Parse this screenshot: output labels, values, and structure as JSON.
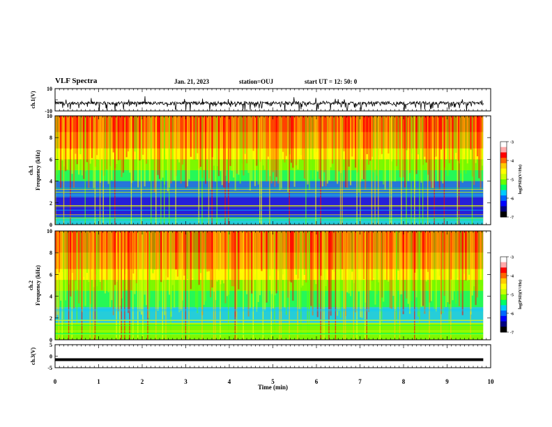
{
  "header": {
    "title": "VLF Spectra",
    "date": "Jan. 21, 2023",
    "station": "station=OUJ",
    "start_ut": "start UT = 12: 50: 0"
  },
  "colors": {
    "palette": [
      "#000080",
      "#0000ff",
      "#0066ff",
      "#00ccff",
      "#00ff66",
      "#66ff00",
      "#ccff00",
      "#ffff00",
      "#ffcc00",
      "#ff6600",
      "#ff0000",
      "#ffaaaa",
      "#ffffff"
    ],
    "trace": "#000000",
    "axes": "#000000"
  },
  "chart_data": [
    {
      "type": "line",
      "ylabel": "ch.1(V)",
      "ylim": [
        -10,
        10
      ],
      "yticks": [
        "10",
        "-10"
      ],
      "xlim": [
        0,
        10
      ],
      "description_trace": "noisy waveform around -3 V with frequent negative spikes",
      "baseline": -3
    },
    {
      "type": "heatmap",
      "ylabel_line1": "ch.1",
      "ylabel_line2": "Frequency (kHz)",
      "ylim": [
        0,
        10
      ],
      "yticks": [
        "0",
        "2",
        "4",
        "6",
        "8",
        "10"
      ],
      "xlim": [
        0,
        10
      ],
      "colorbar": {
        "label": "log(PSD)(V²/Hz)",
        "range": [
          -7,
          -3
        ],
        "ticks": [
          "-3",
          "-4",
          "-5",
          "-6",
          "-7"
        ]
      }
    },
    {
      "type": "heatmap",
      "ylabel_line1": "ch.2",
      "ylabel_line2": "Frequency (kHz)",
      "ylim": [
        0,
        10
      ],
      "yticks": [
        "0",
        "2",
        "4",
        "6",
        "8",
        "10"
      ],
      "xlim": [
        0,
        10
      ],
      "colorbar": {
        "label": "log(PSD)(V²/Hz)",
        "range": [
          -7,
          -3
        ],
        "ticks": [
          "-3",
          "-4",
          "-5",
          "-6",
          "-7"
        ]
      }
    },
    {
      "type": "line",
      "ylabel": "ch.3(V)",
      "ylim": [
        -5,
        5
      ],
      "yticks": [
        "5",
        "0",
        "-5"
      ],
      "xlim": [
        0,
        10
      ],
      "constant_value": -1.5
    }
  ],
  "xaxis": {
    "label": "Time (min)",
    "ticks": [
      "0",
      "1",
      "2",
      "3",
      "4",
      "5",
      "6",
      "7",
      "8",
      "9",
      "10"
    ],
    "data_end_min": 9.83
  }
}
